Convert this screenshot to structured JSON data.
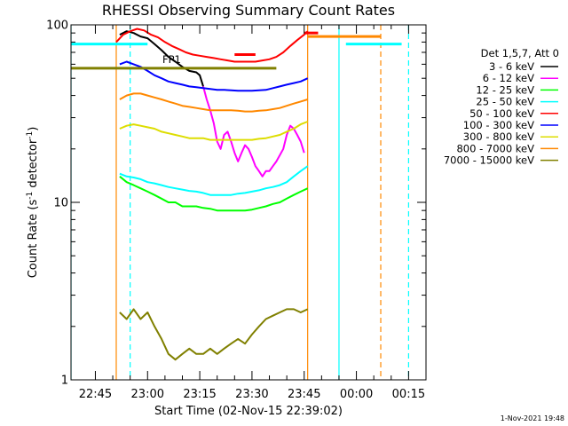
{
  "chart_data": {
    "type": "line",
    "title": "RHESSI Observing Summary Count Rates",
    "xlabel": "Start Time (02-Nov-15 22:39:02)",
    "ylabel_main": "Count Rate (s",
    "ylabel_sup1": "-1",
    "ylabel_mid": " detector",
    "ylabel_sup2": "-1",
    "ylabel_end": ")",
    "x_unit": "minutes after 22:39:02",
    "xlim": [
      -1,
      101
    ],
    "ylim": [
      1,
      100
    ],
    "yscale": "log",
    "x_ticks": [
      {
        "t": 6,
        "label": "22:45"
      },
      {
        "t": 21,
        "label": "23:00"
      },
      {
        "t": 36,
        "label": "23:15"
      },
      {
        "t": 51,
        "label": "23:30"
      },
      {
        "t": 66,
        "label": "23:45"
      },
      {
        "t": 81,
        "label": "00:00"
      },
      {
        "t": 96,
        "label": "00:15"
      }
    ],
    "y_ticks": [
      {
        "v": 1,
        "label": "1"
      },
      {
        "v": 10,
        "label": "10"
      },
      {
        "v": 100,
        "label": "100"
      }
    ],
    "legend_header": "Det 1,5,7, Att 0",
    "legend_position": "right",
    "annotations": {
      "flag_label": "FP1"
    },
    "series": [
      {
        "name": "3 - 6 keV",
        "color": "#000000",
        "points": [
          [
            13,
            88
          ],
          [
            15,
            92
          ],
          [
            17,
            90
          ],
          [
            19,
            86
          ],
          [
            21,
            84
          ],
          [
            23,
            78
          ],
          [
            25,
            72
          ],
          [
            27,
            66
          ],
          [
            29,
            62
          ],
          [
            31,
            58
          ],
          [
            33,
            55
          ],
          [
            35,
            54
          ],
          [
            36,
            52
          ],
          [
            37,
            45
          ]
        ]
      },
      {
        "name": "6 - 12 keV",
        "color": "#ff00ff",
        "points": [
          [
            37,
            45
          ],
          [
            38,
            38
          ],
          [
            39,
            33
          ],
          [
            40,
            28
          ],
          [
            41,
            22
          ],
          [
            42,
            20
          ],
          [
            43,
            24
          ],
          [
            44,
            25
          ],
          [
            45,
            22
          ],
          [
            46,
            19
          ],
          [
            47,
            17
          ],
          [
            48,
            19
          ],
          [
            49,
            21
          ],
          [
            50,
            20
          ],
          [
            51,
            18
          ],
          [
            52,
            16
          ],
          [
            53,
            15
          ],
          [
            54,
            14
          ],
          [
            55,
            15
          ],
          [
            56,
            15
          ],
          [
            57,
            16
          ],
          [
            58,
            17
          ],
          [
            60,
            20
          ],
          [
            61,
            24
          ],
          [
            62,
            27
          ],
          [
            63,
            26
          ],
          [
            64,
            24
          ],
          [
            65,
            22
          ],
          [
            66,
            19
          ]
        ]
      },
      {
        "name": "12 - 25 keV",
        "color": "#00ff00",
        "points": [
          [
            13,
            14
          ],
          [
            15,
            13
          ],
          [
            17,
            12.5
          ],
          [
            19,
            12
          ],
          [
            21,
            11.5
          ],
          [
            23,
            11
          ],
          [
            25,
            10.5
          ],
          [
            27,
            10
          ],
          [
            29,
            10
          ],
          [
            31,
            9.5
          ],
          [
            33,
            9.5
          ],
          [
            35,
            9.5
          ],
          [
            37,
            9.3
          ],
          [
            39,
            9.2
          ],
          [
            41,
            9
          ],
          [
            43,
            9
          ],
          [
            45,
            9
          ],
          [
            47,
            9
          ],
          [
            49,
            9
          ],
          [
            51,
            9.1
          ],
          [
            53,
            9.3
          ],
          [
            55,
            9.5
          ],
          [
            57,
            9.8
          ],
          [
            59,
            10
          ],
          [
            61,
            10.5
          ],
          [
            63,
            11
          ],
          [
            65,
            11.5
          ],
          [
            67,
            12
          ]
        ]
      },
      {
        "name": "25 - 50 keV",
        "color": "#00ffff",
        "points": [
          [
            13,
            14.5
          ],
          [
            15,
            14
          ],
          [
            17,
            13.8
          ],
          [
            19,
            13.5
          ],
          [
            21,
            13
          ],
          [
            23,
            12.8
          ],
          [
            25,
            12.5
          ],
          [
            27,
            12.2
          ],
          [
            29,
            12
          ],
          [
            31,
            11.8
          ],
          [
            33,
            11.6
          ],
          [
            35,
            11.5
          ],
          [
            37,
            11.3
          ],
          [
            39,
            11
          ],
          [
            41,
            11
          ],
          [
            43,
            11
          ],
          [
            45,
            11
          ],
          [
            47,
            11.2
          ],
          [
            49,
            11.3
          ],
          [
            51,
            11.5
          ],
          [
            53,
            11.7
          ],
          [
            55,
            12
          ],
          [
            57,
            12.2
          ],
          [
            59,
            12.5
          ],
          [
            61,
            13
          ],
          [
            63,
            14
          ],
          [
            65,
            15
          ],
          [
            67,
            16
          ]
        ]
      },
      {
        "name": "50 - 100 keV",
        "color": "#ff0000",
        "points": [
          [
            12,
            80
          ],
          [
            14,
            88
          ],
          [
            16,
            92
          ],
          [
            18,
            95
          ],
          [
            20,
            93
          ],
          [
            22,
            88
          ],
          [
            24,
            85
          ],
          [
            26,
            80
          ],
          [
            28,
            76
          ],
          [
            30,
            73
          ],
          [
            32,
            70
          ],
          [
            34,
            68
          ],
          [
            36,
            67
          ],
          [
            38,
            66
          ],
          [
            40,
            65
          ],
          [
            42,
            64
          ],
          [
            44,
            63
          ],
          [
            46,
            62
          ],
          [
            48,
            62
          ],
          [
            50,
            62
          ],
          [
            52,
            62
          ],
          [
            54,
            63
          ],
          [
            56,
            64
          ],
          [
            58,
            66
          ],
          [
            60,
            70
          ],
          [
            62,
            76
          ],
          [
            64,
            82
          ],
          [
            66,
            88
          ],
          [
            67,
            92
          ]
        ]
      },
      {
        "name": "100 - 300 keV",
        "color": "#0000ff",
        "points": [
          [
            13,
            60
          ],
          [
            15,
            62
          ],
          [
            17,
            60
          ],
          [
            19,
            58
          ],
          [
            21,
            55
          ],
          [
            23,
            52
          ],
          [
            25,
            50
          ],
          [
            27,
            48
          ],
          [
            29,
            47
          ],
          [
            31,
            46
          ],
          [
            33,
            45
          ],
          [
            35,
            44.5
          ],
          [
            37,
            44
          ],
          [
            39,
            43.5
          ],
          [
            41,
            43
          ],
          [
            43,
            43
          ],
          [
            45,
            42.8
          ],
          [
            47,
            42.5
          ],
          [
            49,
            42.5
          ],
          [
            51,
            42.5
          ],
          [
            53,
            42.8
          ],
          [
            55,
            43
          ],
          [
            57,
            44
          ],
          [
            59,
            45
          ],
          [
            61,
            46
          ],
          [
            63,
            47
          ],
          [
            65,
            48
          ],
          [
            67,
            50
          ]
        ]
      },
      {
        "name": "300 - 800 keV",
        "color": "#dddd00",
        "points": [
          [
            13,
            26
          ],
          [
            15,
            27
          ],
          [
            17,
            27.5
          ],
          [
            19,
            27
          ],
          [
            21,
            26.5
          ],
          [
            23,
            26
          ],
          [
            25,
            25
          ],
          [
            27,
            24.5
          ],
          [
            29,
            24
          ],
          [
            31,
            23.5
          ],
          [
            33,
            23
          ],
          [
            35,
            23
          ],
          [
            37,
            23
          ],
          [
            39,
            22.5
          ],
          [
            41,
            22.5
          ],
          [
            43,
            22.5
          ],
          [
            45,
            22.5
          ],
          [
            47,
            22.5
          ],
          [
            49,
            22.5
          ],
          [
            51,
            22.5
          ],
          [
            53,
            22.8
          ],
          [
            55,
            23
          ],
          [
            57,
            23.5
          ],
          [
            59,
            24
          ],
          [
            61,
            25
          ],
          [
            63,
            26
          ],
          [
            65,
            27.5
          ],
          [
            67,
            28.5
          ]
        ]
      },
      {
        "name": "800 - 7000 keV",
        "color": "#ff8800",
        "points": [
          [
            13,
            38
          ],
          [
            15,
            40
          ],
          [
            17,
            41
          ],
          [
            19,
            41
          ],
          [
            21,
            40
          ],
          [
            23,
            39
          ],
          [
            25,
            38
          ],
          [
            27,
            37
          ],
          [
            29,
            36
          ],
          [
            31,
            35
          ],
          [
            33,
            34.5
          ],
          [
            35,
            34
          ],
          [
            37,
            33.5
          ],
          [
            39,
            33
          ],
          [
            41,
            33
          ],
          [
            43,
            33
          ],
          [
            45,
            33
          ],
          [
            47,
            32.8
          ],
          [
            49,
            32.5
          ],
          [
            51,
            32.5
          ],
          [
            53,
            32.8
          ],
          [
            55,
            33
          ],
          [
            57,
            33.5
          ],
          [
            59,
            34
          ],
          [
            61,
            35
          ],
          [
            63,
            36
          ],
          [
            65,
            37
          ],
          [
            67,
            38
          ]
        ]
      },
      {
        "name": "7000 - 15000 keV",
        "color": "#808000",
        "points": [
          [
            13,
            2.4
          ],
          [
            15,
            2.2
          ],
          [
            17,
            2.5
          ],
          [
            19,
            2.2
          ],
          [
            21,
            2.4
          ],
          [
            23,
            2.0
          ],
          [
            25,
            1.7
          ],
          [
            27,
            1.4
          ],
          [
            29,
            1.3
          ],
          [
            31,
            1.4
          ],
          [
            33,
            1.5
          ],
          [
            35,
            1.4
          ],
          [
            37,
            1.4
          ],
          [
            39,
            1.5
          ],
          [
            41,
            1.4
          ],
          [
            43,
            1.5
          ],
          [
            45,
            1.6
          ],
          [
            47,
            1.7
          ],
          [
            49,
            1.6
          ],
          [
            51,
            1.8
          ],
          [
            53,
            2.0
          ],
          [
            55,
            2.2
          ],
          [
            57,
            2.3
          ],
          [
            59,
            2.4
          ],
          [
            61,
            2.5
          ],
          [
            63,
            2.5
          ],
          [
            65,
            2.4
          ],
          [
            67,
            2.5
          ]
        ]
      }
    ],
    "reference_lines": [
      {
        "color": "#808000",
        "y": 57,
        "x": [
          -1,
          58
        ]
      },
      {
        "color": "#00ffff",
        "y": 78,
        "x": [
          -1,
          21
        ]
      },
      {
        "color": "#00ffff",
        "y": 78,
        "x": [
          78,
          94
        ]
      },
      {
        "color": "#ff8800",
        "y": 86,
        "x": [
          67,
          88
        ]
      },
      {
        "color": "#ff0000",
        "y": 68,
        "x": [
          46,
          52
        ]
      },
      {
        "color": "#ff0000",
        "y": 90,
        "x": [
          66,
          70
        ]
      }
    ],
    "vertical_lines": [
      {
        "t": -1,
        "color": "#00ffff",
        "dash": false
      },
      {
        "t": 12,
        "color": "#ff8800",
        "dash": false
      },
      {
        "t": 16,
        "color": "#00ffff",
        "dash": true
      },
      {
        "t": 67,
        "color": "#ff8800",
        "dash": false
      },
      {
        "t": 76,
        "color": "#00ffff",
        "dash": false
      },
      {
        "t": 88,
        "color": "#ff8800",
        "dash": true
      },
      {
        "t": 96,
        "color": "#00ffff",
        "dash": true
      }
    ]
  },
  "footer": {
    "timestamp": "1-Nov-2021 19:48"
  }
}
